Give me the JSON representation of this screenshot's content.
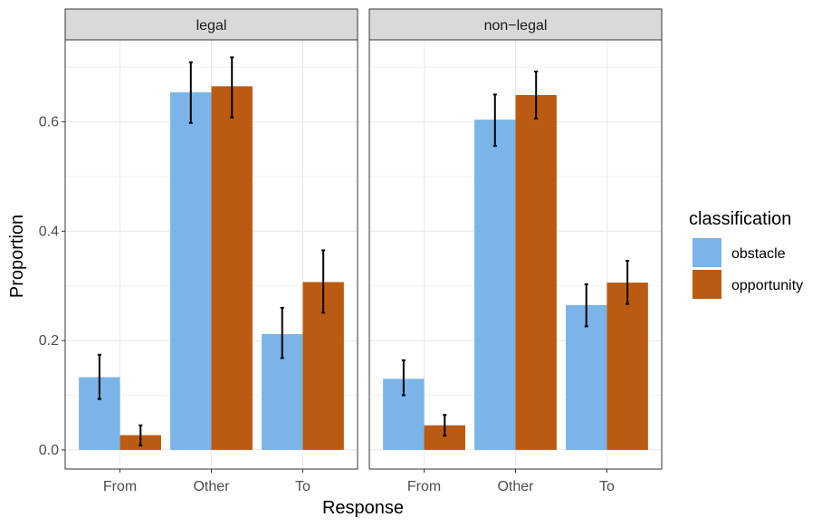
{
  "chart_data": {
    "type": "bar",
    "facets": [
      "legal",
      "non−legal"
    ],
    "categories": [
      "From",
      "Other",
      "To"
    ],
    "xlabel": "Response",
    "ylabel": "Proportion",
    "ylim": [
      -0.035,
      0.75
    ],
    "yticks": [
      "0.0",
      "0.2",
      "0.4",
      "0.6"
    ],
    "legend": {
      "title": "classification",
      "position": "right"
    },
    "series": [
      {
        "name": "obstacle",
        "color": "#7ab4e8",
        "values": {
          "legal": [
            0.133,
            0.654,
            0.212
          ],
          "non−legal": [
            0.13,
            0.604,
            0.265
          ]
        },
        "errors": {
          "legal": [
            [
              0.093,
              0.174
            ],
            [
              0.598,
              0.709
            ],
            [
              0.168,
              0.26
            ]
          ],
          "non−legal": [
            [
              0.1,
              0.164
            ],
            [
              0.556,
              0.65
            ],
            [
              0.226,
              0.303
            ]
          ]
        }
      },
      {
        "name": "opportunity",
        "color": "#bb5b12",
        "values": {
          "legal": [
            0.027,
            0.665,
            0.307
          ],
          "non−legal": [
            0.045,
            0.649,
            0.306
          ]
        },
        "errors": {
          "legal": [
            [
              0.008,
              0.045
            ],
            [
              0.608,
              0.718
            ],
            [
              0.251,
              0.365
            ]
          ],
          "non−legal": [
            [
              0.026,
              0.064
            ],
            [
              0.606,
              0.692
            ],
            [
              0.267,
              0.346
            ]
          ]
        }
      }
    ],
    "grid": true
  }
}
